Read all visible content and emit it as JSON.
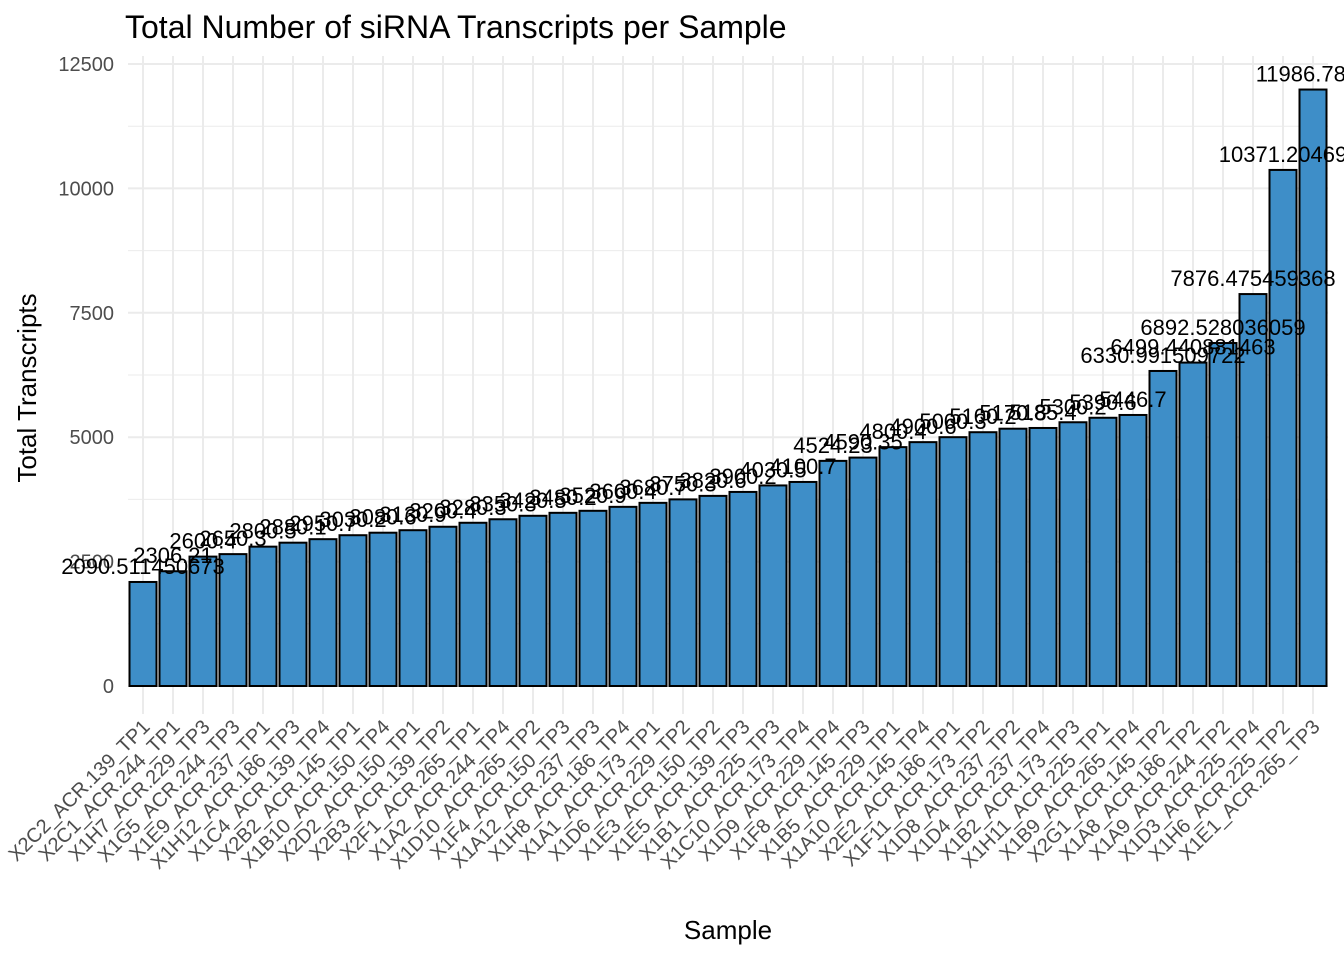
{
  "chart_data": {
    "type": "bar",
    "title": "Total Number of siRNA Transcripts per Sample",
    "x_label": "Sample",
    "y_label": "Total Transcripts",
    "categories": [
      "X2C2_ACR.139_TP1",
      "X2C1_ACR.244_TP1",
      "X1H7_ACR.229_TP3",
      "X1G5_ACR.244_TP3",
      "X1E9_ACR.237_TP1",
      "X1H12_ACR.186_TP3",
      "X1C4_ACR.139_TP4",
      "X2B2_ACR.145_TP1",
      "X1B10_ACR.150_TP4",
      "X2D2_ACR.150_TP1",
      "X2B3_ACR.139_TP2",
      "X2F1_ACR.265_TP1",
      "X1A2_ACR.244_TP4",
      "X1D10_ACR.265_TP2",
      "X1F4_ACR.150_TP3",
      "X1A12_ACR.237_TP3",
      "X1H8_ACR.186_TP4",
      "X1A1_ACR.173_TP1",
      "X1D6_ACR.229_TP2",
      "X1E3_ACR.150_TP2",
      "X1E5_ACR.139_TP3",
      "X1B1_ACR.225_TP3",
      "X1C10_ACR.173_TP4",
      "X1D9_ACR.229_TP4",
      "X1F8_ACR.145_TP3",
      "X1B5_ACR.229_TP1",
      "X1A10_ACR.145_TP4",
      "X2E2_ACR.186_TP1",
      "X1F11_ACR.173_TP2",
      "X1D8_ACR.237_TP2",
      "X1D4_ACR.237_TP4",
      "X1B2_ACR.173_TP3",
      "X1H11_ACR.225_TP1",
      "X1B9_ACR.265_TP4",
      "X2G1_ACR.145_TP2",
      "X1A8_ACR.186_TP2",
      "X1A9_ACR.244_TP2",
      "X1D3_ACR.225_TP4",
      "X1H6_ACR.225_TP2",
      "X1E1_ACR.265_TP3"
    ],
    "values": [
      2090.511450673,
      2306.21,
      2600.4,
      2650.3,
      2800.5,
      2880.1,
      2950.7,
      3030.2,
      3080.6,
      3130.9,
      3200.4,
      3280.3,
      3350.8,
      3420.5,
      3480.2,
      3520.9,
      3600.4,
      3680.7,
      3750.3,
      3820.6,
      3900.2,
      4030.5,
      4100.7,
      4524.23,
      4590.35,
      4800.4,
      4900.6,
      5000.3,
      5100.2,
      5170.8,
      5185.4,
      5300.2,
      5390.6,
      5446.7,
      6330.991509722,
      6499.440881463,
      6892.528036059,
      7876.475459368,
      10371.20469,
      11986.7898
    ],
    "color": "#3e8ec8",
    "ylim": [
      0,
      12500
    ],
    "yticks": [
      0,
      2500,
      5000,
      7500,
      10000,
      12500
    ],
    "grid": true
  }
}
